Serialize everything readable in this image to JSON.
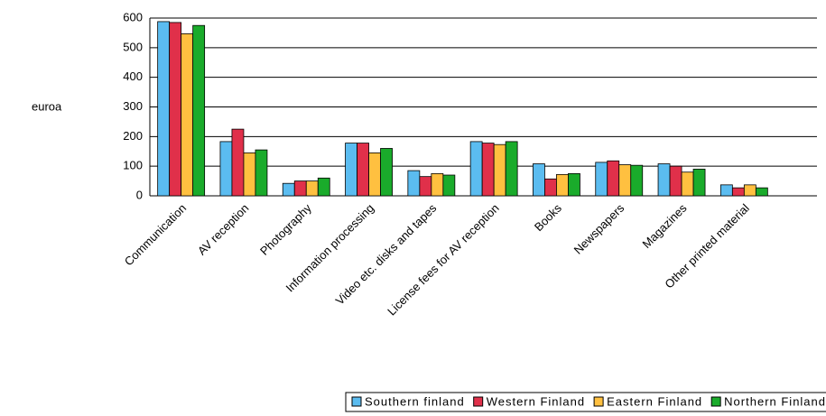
{
  "chart_data": {
    "type": "bar",
    "y_label": "euroa",
    "categories": [
      "Communication",
      "AV reception",
      "Photography",
      "Information processing",
      "Video etc. disks and tapes",
      "License fees for AV reception",
      "Books",
      "Newspapers",
      "Magazines",
      "Other printed material"
    ],
    "series": [
      {
        "name": "Southern finland",
        "color": "#5bbcf0",
        "values": [
          588,
          183,
          42,
          178,
          85,
          183,
          108,
          113,
          108,
          37
        ]
      },
      {
        "name": "Western Finland",
        "color": "#e0304a",
        "values": [
          585,
          225,
          50,
          178,
          65,
          178,
          57,
          118,
          100,
          27
        ]
      },
      {
        "name": "Eastern Finland",
        "color": "#ffc040",
        "values": [
          547,
          145,
          50,
          145,
          75,
          173,
          72,
          105,
          80,
          37
        ]
      },
      {
        "name": "Northern Finland",
        "color": "#1aab2b",
        "values": [
          575,
          155,
          60,
          160,
          70,
          183,
          75,
          103,
          90,
          27
        ]
      }
    ],
    "ylim": [
      0,
      600
    ],
    "yticks": [
      0,
      100,
      200,
      300,
      400,
      500,
      600
    ],
    "grid": true,
    "legend": "bottom"
  }
}
